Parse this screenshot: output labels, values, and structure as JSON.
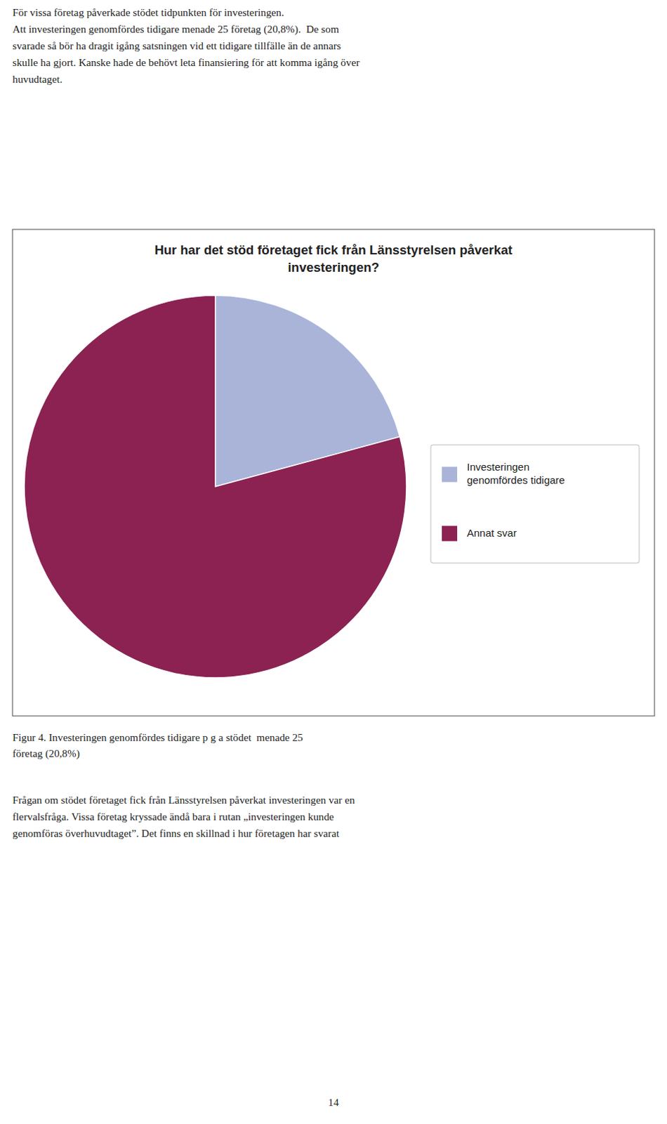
{
  "chart_data": {
    "type": "pie",
    "title": "Hur har det stöd företaget fick från Länsstyrelsen påverkat\ninvesteringen?",
    "categories": [
      "Investeringen\ngenomfördes tidigare",
      "Annat svar"
    ],
    "values": [
      20.8,
      79.2
    ],
    "colors": [
      "#aab4d8",
      "#8b2252"
    ],
    "legend": "right"
  },
  "page_text": {
    "body_top": "För vissa företag påverkade stödet tidpunkten för investeringen.\nAtt investeringen genomfördes tidigare menade 25 företag (20,8%).  De som\nsvarade så bör ha dragit igång satsningen vid ett tidigare tillfälle än de annars\nskulle ha gjort. Kanske hade de behövt leta finansiering för att komma igång över\nhuvudtaget.",
    "caption": "Figur 4. Investeringen genomfördes tidigare p g a stödet  menade 25\nföretag (20,8%)",
    "body_bottom": "Frågan om stödet företaget fick från Länsstyrelsen påverkat investeringen var en\nflervalsfråga. Vissa företag kryssade ändå bara i rutan „investeringen kunde\ngenomföras överhuvudtaget”. Det finns en skillnad i hur företagen har svarat",
    "page_number": "14"
  }
}
